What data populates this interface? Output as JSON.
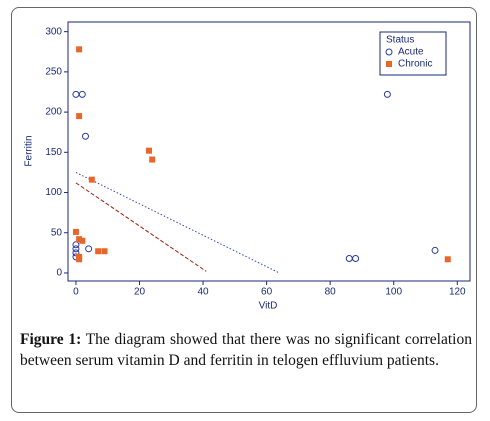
{
  "chart_data": {
    "type": "scatter",
    "x_label": "VitD",
    "y_label": "Ferritin",
    "xlim": [
      -2.5,
      124
    ],
    "ylim": [
      -10,
      312
    ],
    "xticks": [
      0,
      20,
      40,
      60,
      80,
      100,
      120
    ],
    "yticks": [
      0,
      50,
      100,
      150,
      200,
      250,
      300
    ],
    "legend_title": "Status",
    "legend_position": "upper right",
    "series": [
      {
        "name": "Acute",
        "color": "#2a3a9a",
        "marker": "circle",
        "x": [
          0,
          2,
          3,
          0,
          0,
          0,
          4,
          86,
          88,
          98,
          113,
          0
        ],
        "y": [
          222,
          222,
          170,
          35,
          30,
          25,
          30,
          18,
          18,
          222,
          28,
          20
        ]
      },
      {
        "name": "Chronic",
        "color": "#e8662a",
        "marker": "square",
        "x": [
          1,
          1,
          5,
          23,
          24,
          0,
          1,
          2,
          7,
          9,
          1,
          1,
          117
        ],
        "y": [
          278,
          195,
          116,
          152,
          141,
          51,
          42,
          40,
          27,
          27,
          20,
          17,
          17
        ]
      }
    ],
    "trend_lines": [
      {
        "color": "#3344bb",
        "dash": "1.5 2",
        "x": [
          0,
          64
        ],
        "y": [
          125,
          0
        ]
      },
      {
        "color": "#a02010",
        "dash": "4 2",
        "x": [
          0,
          41
        ],
        "y": [
          112,
          2
        ]
      }
    ]
  },
  "caption": {
    "label": "Figure 1:",
    "text": "The diagram showed that there was no significant correlation between serum vitamin D and ferritin in telogen effluvium patients."
  }
}
